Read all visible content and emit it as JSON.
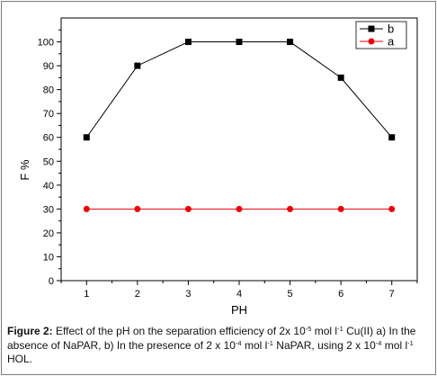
{
  "chart_data": {
    "type": "line",
    "x": [
      1,
      2,
      3,
      4,
      5,
      6,
      7
    ],
    "xlabel": "PH",
    "ylabel": "F %",
    "xlim": [
      0.5,
      7.5
    ],
    "ylim": [
      0,
      110
    ],
    "xticks": [
      "1",
      "2",
      "3",
      "4",
      "5",
      "6",
      "7"
    ],
    "yticks": [
      "0",
      "10",
      "20",
      "30",
      "40",
      "50",
      "60",
      "70",
      "80",
      "90",
      "100"
    ],
    "grid": false,
    "legend_position": "top-right",
    "series": [
      {
        "name": "b",
        "color": "#000000",
        "marker": "square",
        "values": [
          60,
          90,
          100,
          100,
          100,
          85,
          60
        ]
      },
      {
        "name": "a",
        "color": "#e8000b",
        "marker": "circle",
        "values": [
          30,
          30,
          30,
          30,
          30,
          30,
          30
        ]
      }
    ]
  },
  "caption": {
    "label": "Figure 2:",
    "seg1": " Effect of the pH on the separation efficiency of 2x 10",
    "sup1": "-5",
    "seg2": " mol l",
    "sup2": "-1",
    "seg3": " Cu(II) a) In the absence of NaPAR, b) In the presence of 2 x 10",
    "sup3": "-4",
    "seg4": " mol l",
    "sup4": "-1",
    "seg5": " NaPAR, using 2 x 10",
    "sup5": "-4",
    "seg6": " mol l",
    "sup6": "-1",
    "seg7": " HOL."
  }
}
